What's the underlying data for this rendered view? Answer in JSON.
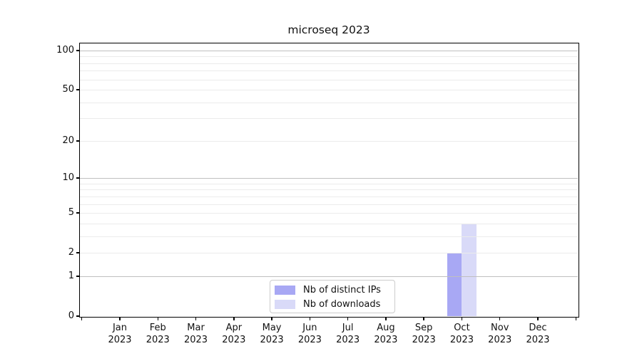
{
  "figure": {
    "background_color": "#ffffff",
    "frame_color": "#000000"
  },
  "chart_data": {
    "type": "bar",
    "title": "microseq 2023",
    "months": [
      "Jan",
      "Feb",
      "Mar",
      "Apr",
      "May",
      "Jun",
      "Jul",
      "Aug",
      "Sep",
      "Oct",
      "Nov",
      "Dec"
    ],
    "year_label": "2023",
    "categories": [
      "Jan 2023",
      "Feb 2023",
      "Mar 2023",
      "Apr 2023",
      "May 2023",
      "Jun 2023",
      "Jul 2023",
      "Aug 2023",
      "Sep 2023",
      "Oct 2023",
      "Nov 2023",
      "Dec 2023"
    ],
    "series": [
      {
        "name": "Nb of distinct IPs",
        "color": "#a8a8f4",
        "values": [
          0,
          0,
          0,
          0,
          0,
          0,
          0,
          0,
          0,
          2,
          0,
          0
        ]
      },
      {
        "name": "Nb of downloads",
        "color": "#d9daf8",
        "values": [
          0,
          0,
          0,
          0,
          0,
          0,
          0,
          0,
          0,
          4,
          0,
          0
        ]
      }
    ],
    "xlabel": "",
    "ylabel": "",
    "y_scale": "log1p",
    "ylim": [
      0,
      113
    ],
    "y_ticks": [
      0,
      1,
      2,
      5,
      10,
      20,
      50,
      100
    ],
    "y_tick_labels": [
      "0",
      "1",
      "2",
      "5",
      "10",
      "20",
      "50",
      "100"
    ],
    "y_major_gridlines": [
      1,
      10,
      100
    ],
    "y_minor_gridlines": [
      2,
      3,
      4,
      5,
      6,
      7,
      8,
      9,
      20,
      30,
      40,
      50,
      60,
      70,
      80,
      90
    ],
    "grid": "on",
    "legend_position": "lower center",
    "colors": {
      "major_grid": "#bfbfbf",
      "minor_grid": "#ebebeb",
      "text": "#111111"
    }
  }
}
